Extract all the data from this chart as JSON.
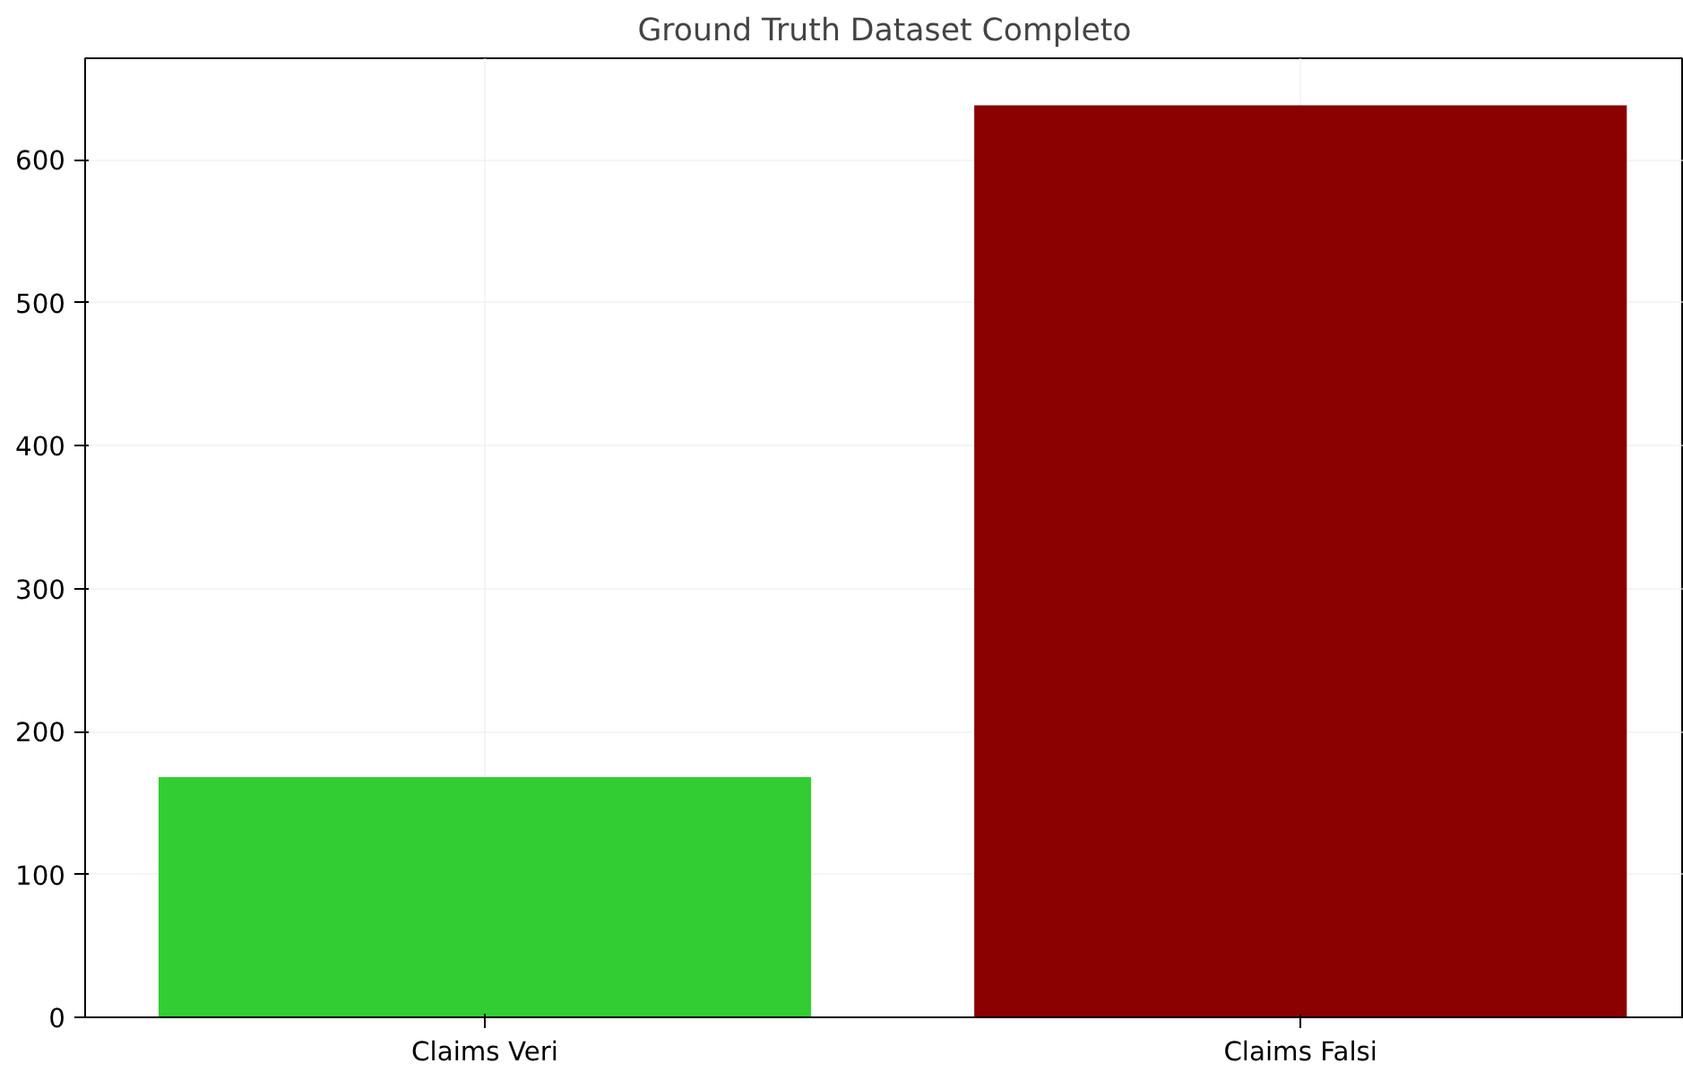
{
  "chart_data": {
    "type": "bar",
    "title": "Ground Truth Dataset Completo",
    "categories": [
      "Claims Veri",
      "Claims Falsi"
    ],
    "values": [
      168,
      638
    ],
    "colors": [
      "#32cd32",
      "#8b0000"
    ],
    "ylim": [
      0,
      671
    ],
    "yticks": [
      0,
      100,
      200,
      300,
      400,
      500,
      600
    ],
    "grid": true
  }
}
